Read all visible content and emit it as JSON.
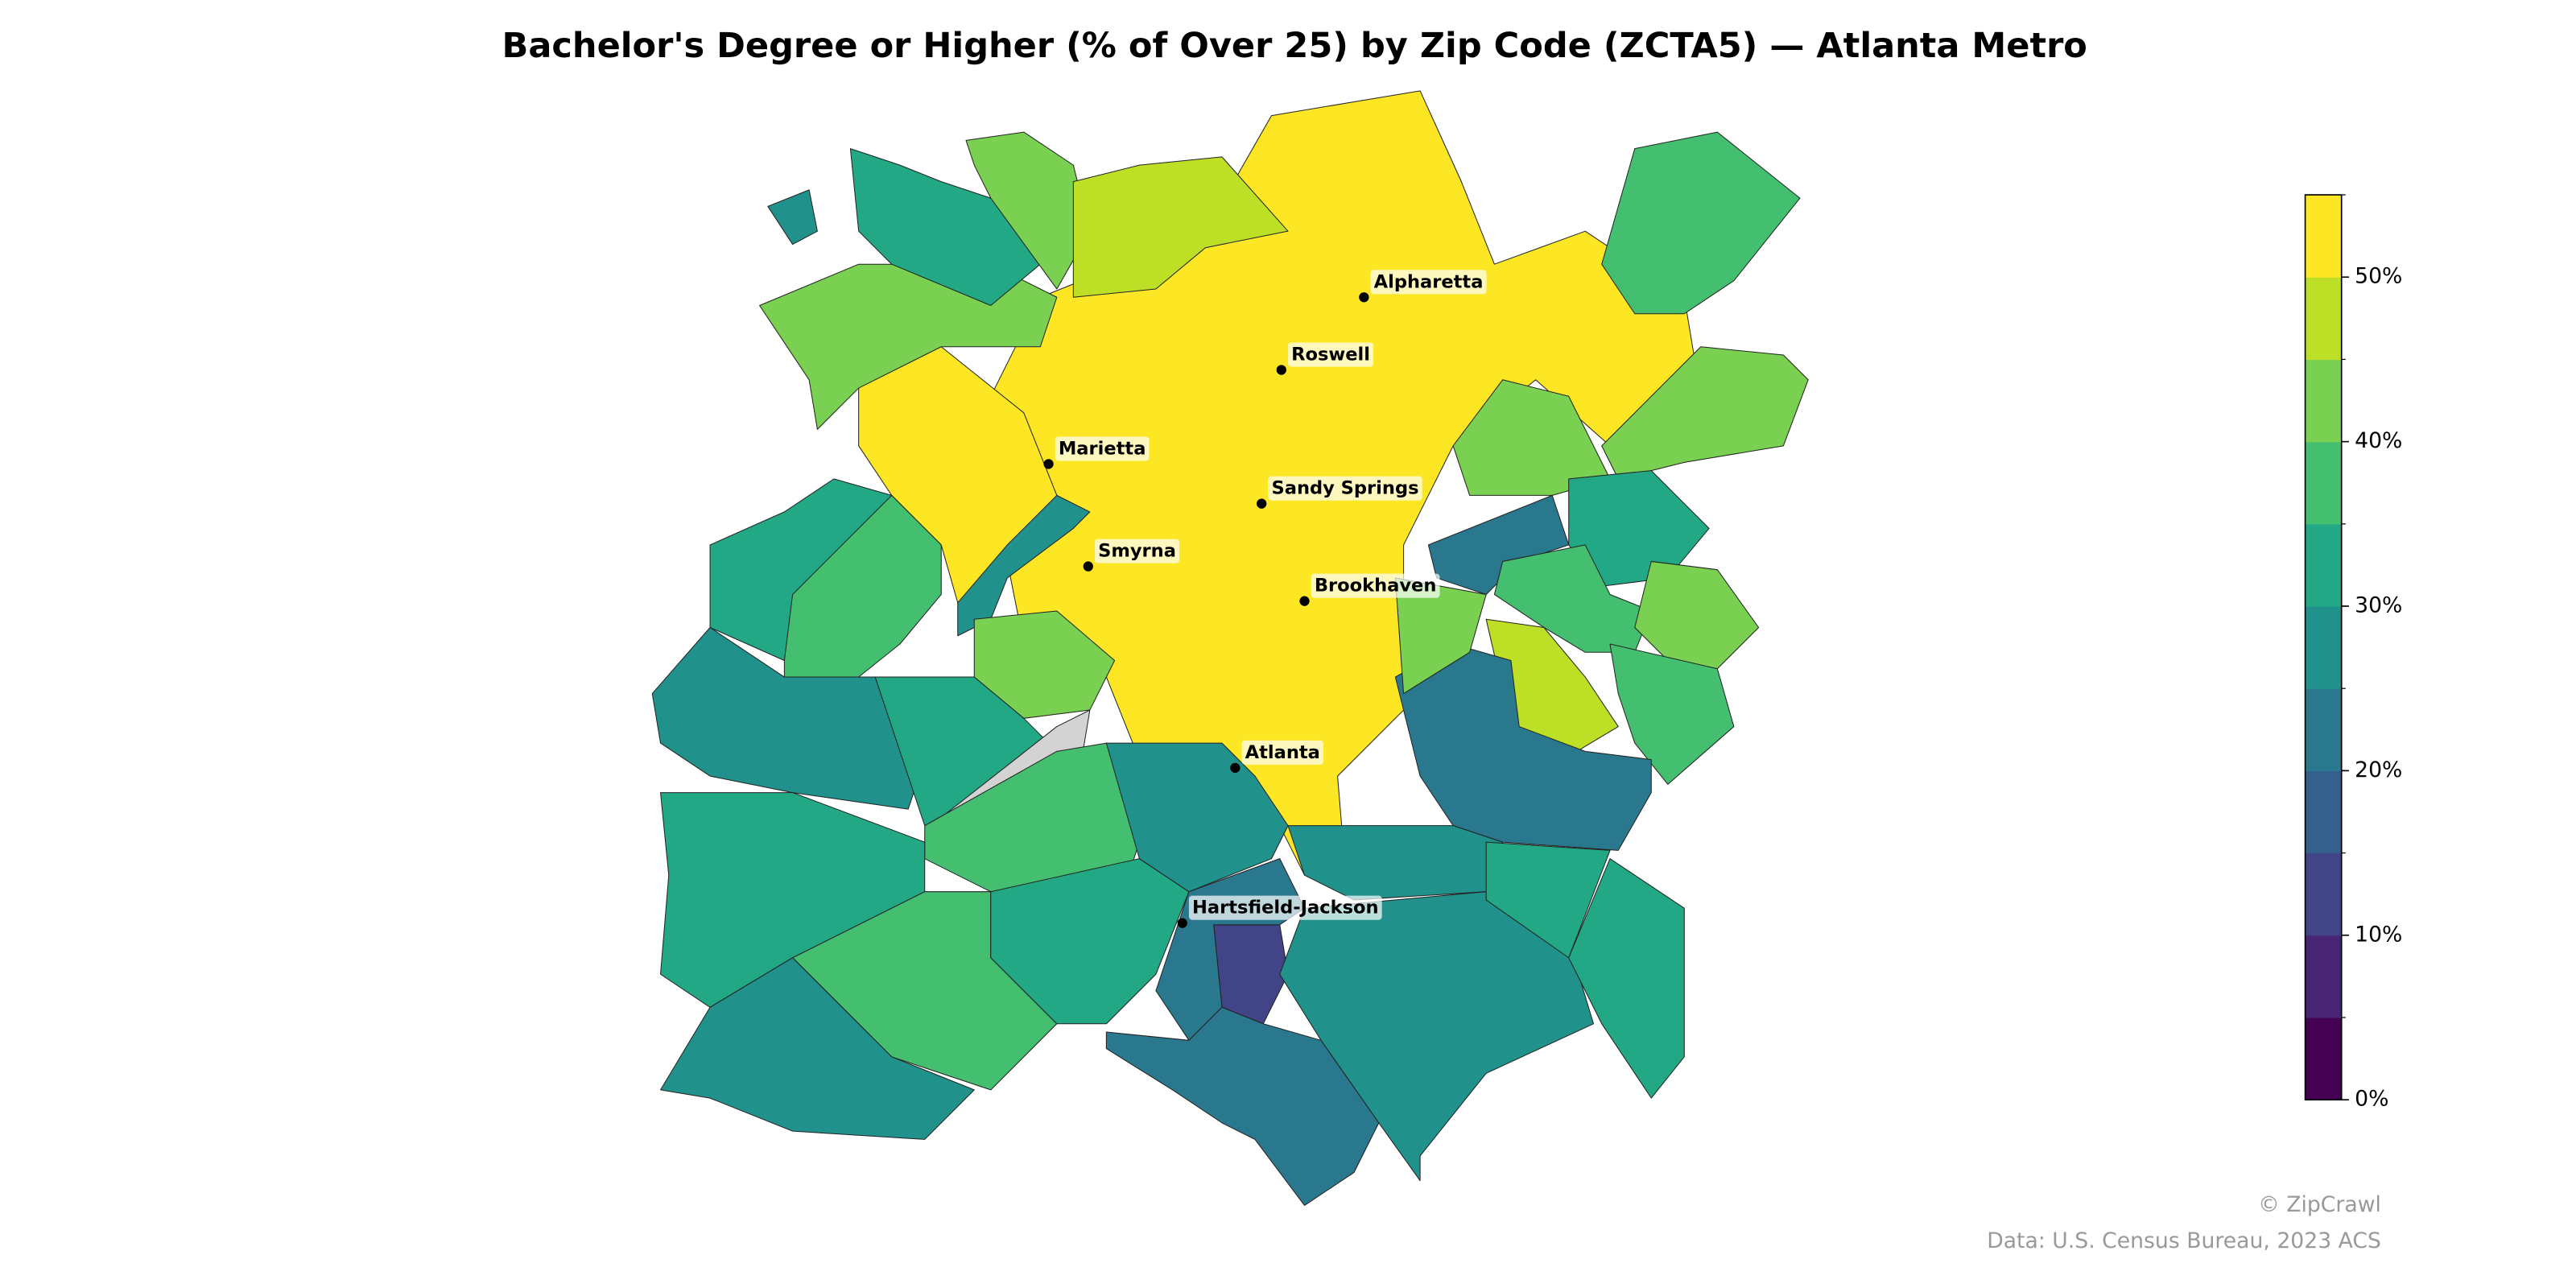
{
  "chart_data": {
    "type": "choropleth",
    "title": "Bachelor's Degree or Higher (% of Over 25) by Zip Code (ZCTA5) — Atlanta Metro",
    "values": [
      62,
      58,
      43,
      33,
      28,
      44,
      48,
      38,
      42,
      44,
      23,
      32,
      38,
      44,
      48,
      37,
      23,
      42,
      38,
      33,
      27,
      44,
      28,
      33,
      null,
      37,
      32,
      38,
      28,
      33,
      29,
      28,
      13,
      22,
      22,
      27,
      31,
      33
    ],
    "clim": [
      0,
      55
    ],
    "colors": [
      "#440154",
      "#482475",
      "#414487",
      "#355f8d",
      "#2a788e",
      "#21918c",
      "#22a884",
      "#44bf70",
      "#7ad151",
      "#bddf26",
      "#fde725"
    ],
    "no_data_color": "#d3d3d3",
    "cticks": [
      {
        "value": 0,
        "label": "0%"
      },
      {
        "value": 10,
        "label": "10%"
      },
      {
        "value": 20,
        "label": "20%"
      },
      {
        "value": 30,
        "label": "30%"
      },
      {
        "value": 40,
        "label": "40%"
      },
      {
        "value": 50,
        "label": "50%"
      }
    ],
    "cities": [
      "Alpharetta",
      "Roswell",
      "Marietta",
      "Sandy Springs",
      "Smyrna",
      "Brookhaven",
      "Atlanta",
      "Hartsfield-Jackson"
    ],
    "credit": "© ZipCrawl",
    "source": "Data: U.S. Census Bureau, 2023 ACS"
  }
}
